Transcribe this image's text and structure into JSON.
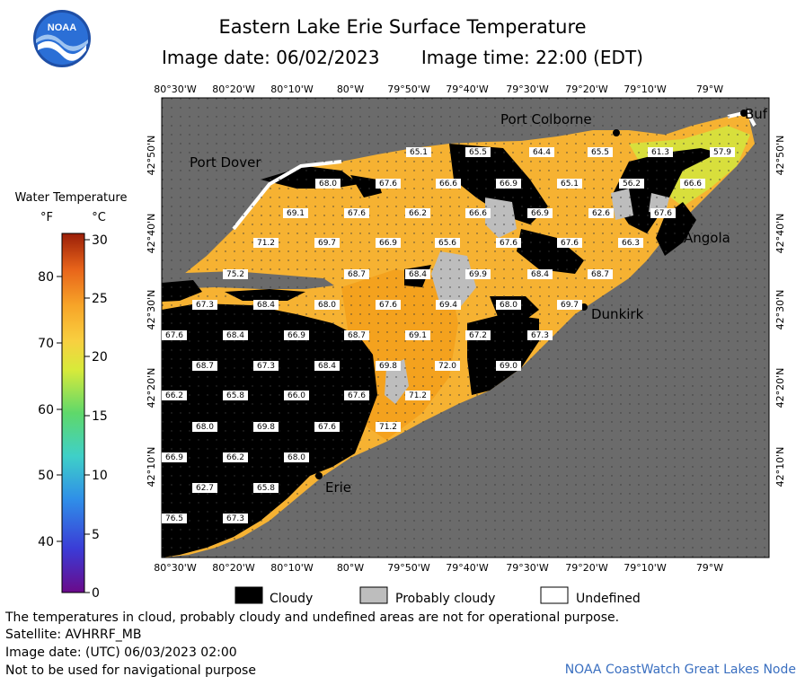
{
  "header": {
    "title": "Eastern Lake Erie Surface Temperature",
    "image_date": "Image date: 06/02/2023",
    "image_time": "Image time: 22:00 (EDT)",
    "logo_text": "NOAA"
  },
  "legend": {
    "title": "Water Temperature",
    "unit_f": "°F",
    "unit_c": "°C",
    "f_ticks": [
      "80",
      "70",
      "60",
      "50",
      "40"
    ],
    "c_ticks": [
      "30",
      "25",
      "20",
      "15",
      "10",
      "5",
      "0"
    ]
  },
  "axes": {
    "lon_labels": [
      "80°30'W",
      "80°20'W",
      "80°10'W",
      "80°W",
      "79°50'W",
      "79°40'W",
      "79°30'W",
      "79°20'W",
      "79°10'W",
      "79°W"
    ],
    "lat_labels": [
      "42°50'N",
      "42°40'N",
      "42°30'N",
      "42°20'N",
      "42°10'N"
    ]
  },
  "places": [
    "Port Colborne",
    "Port Dover",
    "Angola",
    "Dunkirk",
    "Erie",
    "Buf"
  ],
  "temperature_labels": [
    "65.1",
    "65.5",
    "64.4",
    "65.5",
    "61.3",
    "57.9",
    "68.0",
    "67.6",
    "66.6",
    "66.9",
    "65.1",
    "56.2",
    "66.6",
    "69.1",
    "67.6",
    "66.2",
    "66.6",
    "66.9",
    "62.6",
    "67.6",
    "71.2",
    "69.7",
    "66.9",
    "65.6",
    "67.6",
    "67.6",
    "66.3",
    "75.2",
    "68.7",
    "68.4",
    "69.9",
    "68.4",
    "68.7",
    "67.3",
    "68.4",
    "68.0",
    "67.6",
    "69.4",
    "68.0",
    "69.7",
    "67.6",
    "68.4",
    "66.9",
    "68.7",
    "69.1",
    "67.2",
    "67.3",
    "68.7",
    "67.3",
    "68.4",
    "69.8",
    "72.0",
    "69.0",
    "66.2",
    "65.8",
    "66.0",
    "67.6",
    "71.2",
    "68.0",
    "69.8",
    "67.6",
    "71.2",
    "66.9",
    "66.2",
    "68.0",
    "62.7",
    "65.8",
    "76.5",
    "67.3"
  ],
  "key": {
    "cloudy": "Cloudy",
    "probably_cloudy": "Probably cloudy",
    "undefined": "Undefined"
  },
  "footer": {
    "disclaimer": "The temperatures in cloud, probably cloudy and undefined areas are not for operational purpose.",
    "satellite": "Satellite: AVHRRF_MB",
    "utc_date": "Image date: (UTC) 06/03/2023  02:00",
    "nav": "Not to be used for navigational purpose",
    "credit": "NOAA CoastWatch Great Lakes Node"
  },
  "colors": {
    "land": "#6b6b6b",
    "cloud": "#000000",
    "probably_cloudy": "#bdbdbd",
    "water_warm": "#f5a623",
    "water_mid": "#f7c245",
    "water_cool": "#d7e23a"
  }
}
